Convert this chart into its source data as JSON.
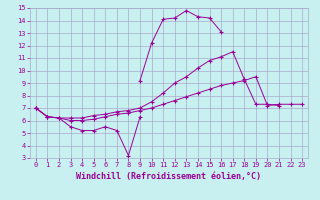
{
  "xlabel": "Windchill (Refroidissement éolien,°C)",
  "x_values": [
    0,
    1,
    2,
    3,
    4,
    5,
    6,
    7,
    8,
    9,
    10,
    11,
    12,
    13,
    14,
    15,
    16,
    17,
    18,
    19,
    20,
    21,
    22,
    23
  ],
  "line1": [
    7.0,
    6.3,
    6.2,
    5.5,
    5.2,
    5.2,
    5.5,
    5.2,
    3.2,
    6.3,
    null,
    null,
    null,
    null,
    null,
    null,
    null,
    null,
    null,
    null,
    null,
    null,
    null,
    null
  ],
  "line2": [
    7.0,
    null,
    null,
    null,
    null,
    null,
    null,
    null,
    null,
    9.2,
    12.2,
    14.1,
    14.2,
    14.8,
    14.3,
    14.2,
    13.1,
    null,
    null,
    null,
    null,
    null,
    null,
    null
  ],
  "line3": [
    7.0,
    6.3,
    6.2,
    6.2,
    6.2,
    6.4,
    6.5,
    6.7,
    6.8,
    7.0,
    7.5,
    8.2,
    9.0,
    9.5,
    10.2,
    10.8,
    11.1,
    11.5,
    9.3,
    7.3,
    7.3,
    7.2,
    null,
    null
  ],
  "line4": [
    7.0,
    6.3,
    6.2,
    6.0,
    6.0,
    6.1,
    6.3,
    6.5,
    6.6,
    6.8,
    7.0,
    7.3,
    7.6,
    7.9,
    8.2,
    8.5,
    8.8,
    9.0,
    9.2,
    9.5,
    7.2,
    7.3,
    7.3,
    7.3
  ],
  "ylim": [
    3,
    15
  ],
  "xlim": [
    0,
    23
  ],
  "yticks": [
    3,
    4,
    5,
    6,
    7,
    8,
    9,
    10,
    11,
    12,
    13,
    14,
    15
  ],
  "xticks": [
    0,
    1,
    2,
    3,
    4,
    5,
    6,
    7,
    8,
    9,
    10,
    11,
    12,
    13,
    14,
    15,
    16,
    17,
    18,
    19,
    20,
    21,
    22,
    23
  ],
  "line_color": "#990099",
  "bg_color": "#c8f0f0",
  "grid_color": "#aaaacc",
  "marker": "+"
}
